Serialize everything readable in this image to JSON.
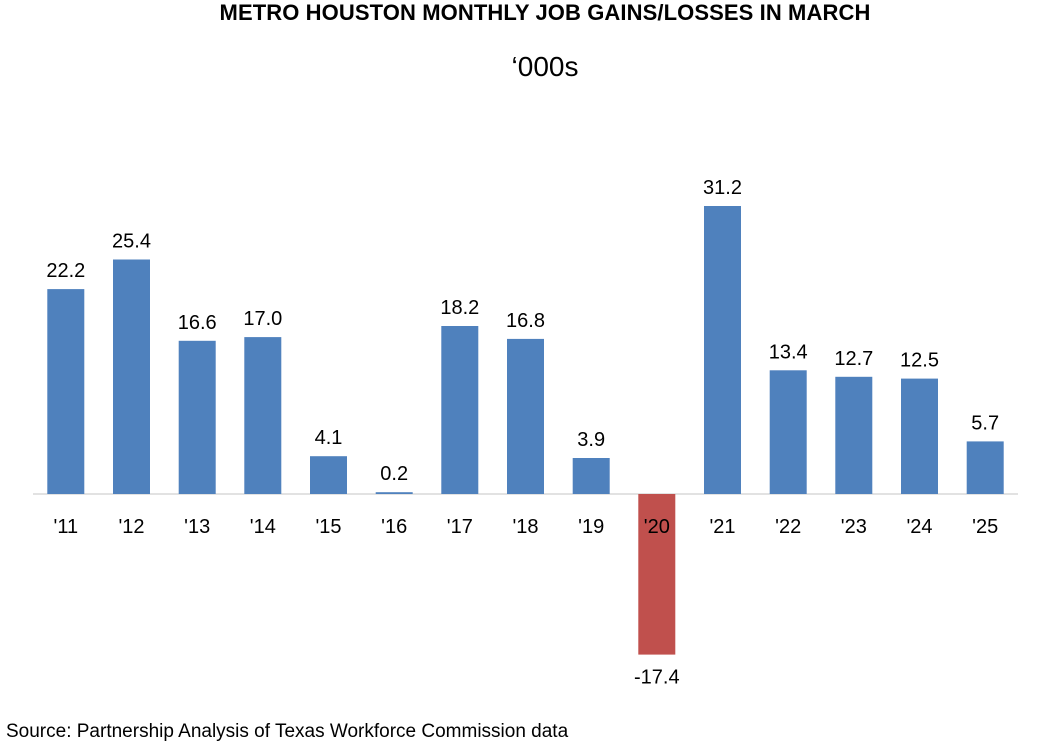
{
  "chart_data": {
    "type": "bar",
    "title": "METRO HOUSTON MONTHLY JOB GAINS/LOSSES IN MARCH",
    "subtitle": "‘000s",
    "categories": [
      "'11",
      "'12",
      "'13",
      "'14",
      "'15",
      "'16",
      "'17",
      "'18",
      "'19",
      "'20",
      "'21",
      "'22",
      "'23",
      "'24",
      "'25"
    ],
    "values": [
      22.2,
      25.4,
      16.6,
      17.0,
      4.1,
      0.2,
      18.2,
      16.8,
      3.9,
      -17.4,
      31.2,
      13.4,
      12.7,
      12.5,
      5.7
    ],
    "value_labels": [
      "22.2",
      "25.4",
      "16.6",
      "17.0",
      "4.1",
      "0.2",
      "18.2",
      "16.8",
      "3.9",
      "-17.4",
      "31.2",
      "13.4",
      "12.7",
      "12.5",
      "5.7"
    ],
    "xlabel": "",
    "ylabel": "",
    "ylim": [
      -17.4,
      31.2
    ],
    "grid": false,
    "legend": "none",
    "colors": {
      "positive": "#4f81bd",
      "negative": "#c0504d",
      "axis": "#d9d9d9"
    }
  },
  "footer": {
    "source": "Source: Partnership Analysis of Texas Workforce Commission data"
  }
}
